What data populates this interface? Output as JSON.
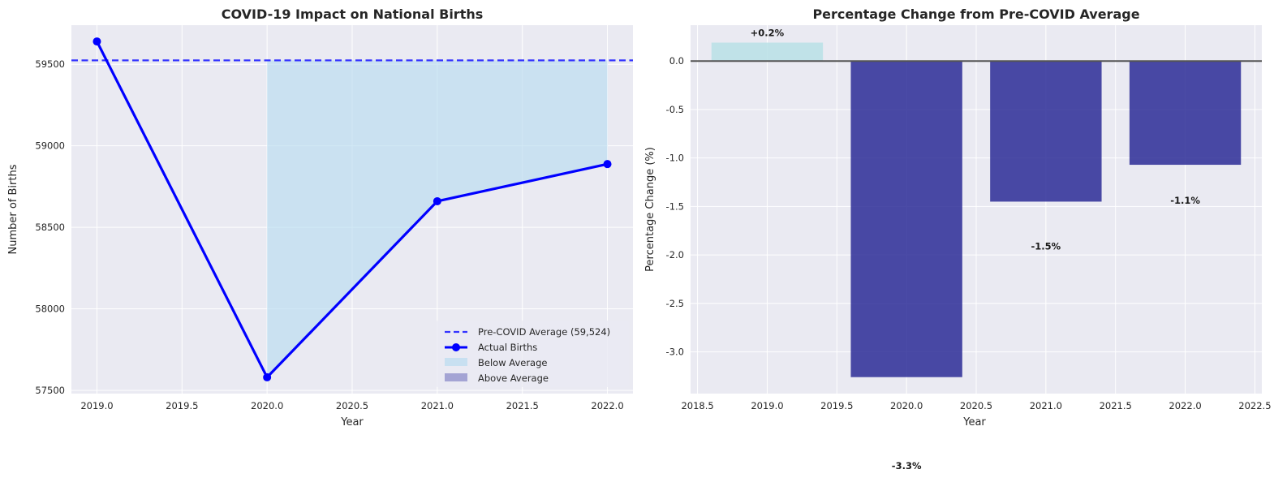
{
  "chart_data": [
    {
      "type": "line",
      "title": "COVID-19 Impact on National Births",
      "xlabel": "Year",
      "ylabel": "Number of Births",
      "xlim": [
        2018.85,
        2022.15
      ],
      "ylim": [
        57480,
        59740
      ],
      "xticks": [
        2019.0,
        2019.5,
        2020.0,
        2020.5,
        2021.0,
        2021.5,
        2022.0
      ],
      "xtick_labels": [
        "2019.0",
        "2019.5",
        "2020.0",
        "2020.5",
        "2021.0",
        "2021.5",
        "2022.0"
      ],
      "yticks": [
        57500,
        58000,
        58500,
        59000,
        59500
      ],
      "ytick_labels": [
        "57500",
        "58000",
        "58500",
        "59000",
        "59500"
      ],
      "grid": true,
      "legend_position": "bottom-right",
      "baseline": {
        "name": "Pre-COVID Average (59,524)",
        "value": 59524,
        "color": "#3333ff"
      },
      "series": [
        {
          "name": "Actual Births",
          "x": [
            2019,
            2020,
            2021,
            2022
          ],
          "y": [
            59640,
            57580,
            58660,
            58888
          ],
          "color": "#0000ff"
        }
      ],
      "fills": [
        {
          "name": "Below Average",
          "x_from": 2020,
          "x_to": 2022,
          "color": "#b9dcf0"
        },
        {
          "name": "Above Average",
          "color": "#8c8cc9"
        }
      ]
    },
    {
      "type": "bar",
      "title": "Percentage Change from Pre-COVID Average",
      "xlabel": "Year",
      "ylabel": "Percentage Change (%)",
      "xlim": [
        2018.45,
        2022.55
      ],
      "ylim": [
        -3.43,
        0.37
      ],
      "xticks": [
        2018.5,
        2019.0,
        2019.5,
        2020.0,
        2020.5,
        2021.0,
        2021.5,
        2022.0,
        2022.5
      ],
      "xtick_labels": [
        "2018.5",
        "2019.0",
        "2019.5",
        "2020.0",
        "2020.5",
        "2021.0",
        "2021.5",
        "2022.0",
        "2022.5"
      ],
      "yticks": [
        0.0,
        -0.5,
        -1.0,
        -1.5,
        -2.0,
        -2.5,
        -3.0
      ],
      "ytick_labels": [
        "0.0",
        "-0.5",
        "-1.0",
        "-1.5",
        "-2.0",
        "-2.5",
        "-3.0"
      ],
      "grid": true,
      "bar_width": 0.8,
      "x": [
        2019,
        2020,
        2021,
        2022
      ],
      "values": [
        0.19,
        -3.26,
        -1.45,
        -1.07
      ],
      "data_labels": [
        "+0.2%",
        "-3.3%",
        "-1.5%",
        "-1.1%"
      ],
      "colors": {
        "positive": "#b8e0e6",
        "negative": "#2c2c96"
      }
    }
  ]
}
